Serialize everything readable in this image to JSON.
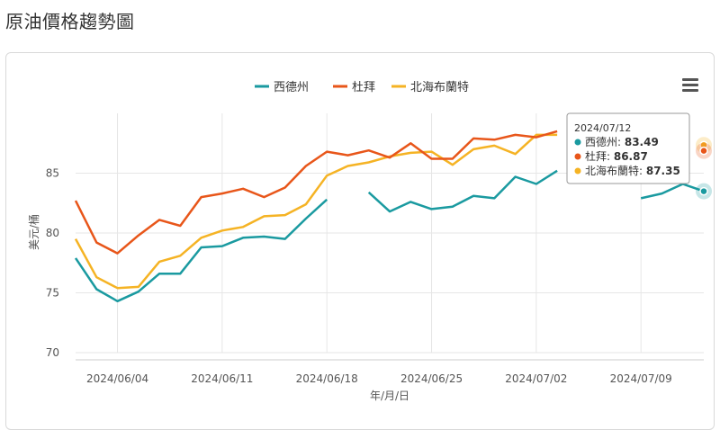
{
  "page_title": "原油價格趨勢圖",
  "menu_icon": "hamburger-menu-icon",
  "colors": {
    "wti": "#1a9aa0",
    "dubai": "#e8561a",
    "brent": "#f5b324",
    "grid": "#e6e6e6",
    "axis": "#cccccc"
  },
  "tooltip": {
    "date": "2024/07/12",
    "rows": [
      {
        "label": "西德州:",
        "value": "83.49",
        "series": "wti"
      },
      {
        "label": "杜拜:",
        "value": "86.87",
        "series": "dubai"
      },
      {
        "label": "北海布蘭特:",
        "value": "87.35",
        "series": "brent"
      }
    ]
  },
  "chart_data": {
    "type": "line",
    "xlabel": "年/月/日",
    "ylabel": "美元/桶",
    "ylim": [
      70,
      90
    ],
    "yticks": [
      70,
      75,
      80,
      85
    ],
    "xticks": [
      "2024/06/04",
      "2024/06/11",
      "2024/06/18",
      "2024/06/25",
      "2024/07/02",
      "2024/07/09"
    ],
    "legend_position": "top-center",
    "x": [
      "2024/05/31",
      "2024/06/03",
      "2024/06/04",
      "2024/06/05",
      "2024/06/06",
      "2024/06/07",
      "2024/06/10",
      "2024/06/11",
      "2024/06/12",
      "2024/06/13",
      "2024/06/14",
      "2024/06/17",
      "2024/06/18",
      "2024/06/19",
      "2024/06/20",
      "2024/06/21",
      "2024/06/24",
      "2024/06/25",
      "2024/06/26",
      "2024/06/27",
      "2024/06/28",
      "2024/07/01",
      "2024/07/02",
      "2024/07/03",
      "2024/07/04",
      "2024/07/05",
      "2024/07/08",
      "2024/07/09",
      "2024/07/10",
      "2024/07/11",
      "2024/07/12"
    ],
    "series": [
      {
        "name": "西德州",
        "key": "wti",
        "values": [
          77.9,
          75.3,
          74.3,
          75.1,
          76.6,
          76.6,
          78.8,
          78.9,
          79.6,
          79.7,
          79.5,
          81.2,
          82.8,
          null,
          83.4,
          81.8,
          82.6,
          82.0,
          82.2,
          83.1,
          82.9,
          84.7,
          84.1,
          85.2,
          null,
          null,
          null,
          82.9,
          83.3,
          84.1,
          83.49
        ]
      },
      {
        "name": "杜拜",
        "key": "dubai",
        "values": [
          82.7,
          79.2,
          78.3,
          79.8,
          81.1,
          80.6,
          83.0,
          83.3,
          83.7,
          83.0,
          83.8,
          85.6,
          86.8,
          86.5,
          86.9,
          86.3,
          87.5,
          86.2,
          86.2,
          87.9,
          87.8,
          88.2,
          88.0,
          88.5,
          null,
          null,
          null,
          null,
          null,
          null,
          86.87
        ]
      },
      {
        "name": "北海布蘭特",
        "key": "brent",
        "values": [
          79.5,
          76.3,
          75.4,
          75.5,
          77.6,
          78.1,
          79.6,
          80.2,
          80.5,
          81.4,
          81.5,
          82.4,
          84.8,
          85.6,
          85.9,
          86.4,
          86.7,
          86.8,
          85.7,
          87.0,
          87.3,
          86.6,
          88.2,
          88.2,
          null,
          null,
          null,
          null,
          null,
          null,
          87.35
        ]
      }
    ]
  }
}
